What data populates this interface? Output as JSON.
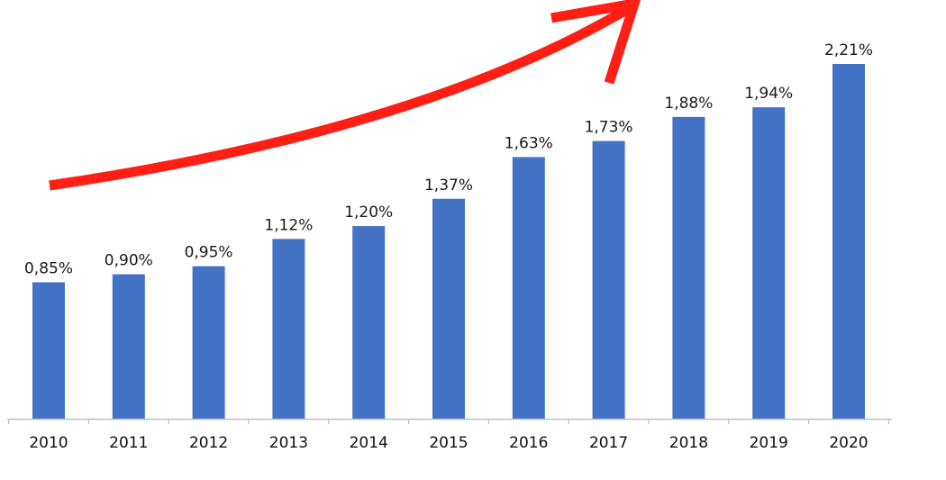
{
  "chart_data": {
    "type": "bar",
    "categories": [
      "2010",
      "2011",
      "2012",
      "2013",
      "2014",
      "2015",
      "2016",
      "2017",
      "2018",
      "2019",
      "2020"
    ],
    "values": [
      0.85,
      0.9,
      0.95,
      1.12,
      1.2,
      1.37,
      1.63,
      1.73,
      1.88,
      1.94,
      2.21
    ],
    "value_labels": [
      "0,85%",
      "0,90%",
      "0,95%",
      "1,12%",
      "1,20%",
      "1,37%",
      "1,63%",
      "1,73%",
      "1,88%",
      "1,94%",
      "2,21%"
    ],
    "unit": "%",
    "title": "",
    "xlabel": "",
    "ylabel": "",
    "ylim": [
      0,
      2.21
    ],
    "grid": false,
    "legend": "none",
    "annotations": [
      {
        "type": "trend-arrow",
        "direction": "up-right"
      }
    ]
  },
  "colors": {
    "bar": "#4472C4",
    "arrow": "#FF1F14",
    "axis": "#BFBFBF",
    "text": "#111111"
  }
}
